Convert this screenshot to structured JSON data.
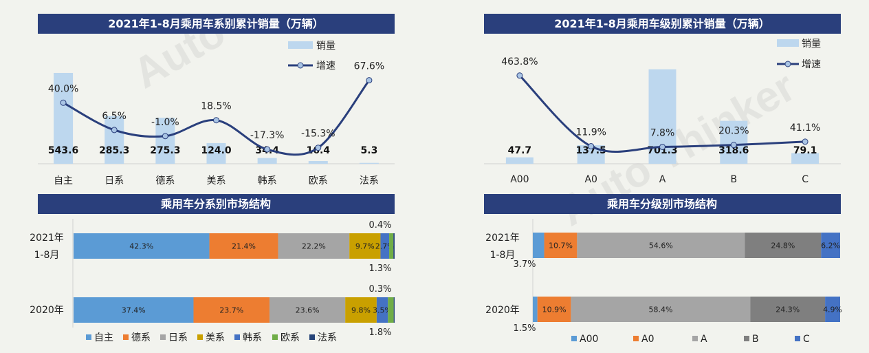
{
  "chart_data": [
    {
      "id": "chart1",
      "type": "bar+line",
      "title": "2021年1-8月乘用车系别累计销量（万辆）",
      "categories": [
        "自主",
        "日系",
        "德系",
        "美系",
        "韩系",
        "欧系",
        "法系"
      ],
      "series": [
        {
          "name": "销量",
          "type": "bar",
          "values": [
            543.6,
            285.3,
            275.3,
            124.0,
            34.4,
            16.4,
            5.3
          ],
          "labels": [
            "543.6",
            "285.3",
            "275.3",
            "124.0",
            "34.4",
            "16.4",
            "5.3"
          ]
        },
        {
          "name": "增速",
          "type": "line",
          "values": [
            40.0,
            6.5,
            -1.0,
            18.5,
            -17.3,
            -15.3,
            67.6
          ],
          "labels": [
            "40.0%",
            "6.5%",
            "-1.0%",
            "18.5%",
            "-17.3%",
            "-15.3%",
            "67.6%"
          ]
        }
      ],
      "legend": [
        "销量",
        "增速"
      ],
      "ylim_bar": [
        0,
        560
      ],
      "ylim_line": [
        -35,
        80
      ]
    },
    {
      "id": "chart2",
      "type": "bar+line",
      "title": "2021年1-8月乘用车级别累计销量（万辆）",
      "categories": [
        "A00",
        "A0",
        "A",
        "B",
        "C"
      ],
      "series": [
        {
          "name": "销量",
          "type": "bar",
          "values": [
            47.7,
            137.5,
            701.3,
            318.6,
            79.1
          ],
          "labels": [
            "47.7",
            "137.5",
            "701.3",
            "318.6",
            "79.1"
          ]
        },
        {
          "name": "增速",
          "type": "line",
          "values": [
            463.8,
            11.9,
            7.8,
            20.3,
            41.1
          ],
          "labels": [
            "463.8%",
            "11.9%",
            "7.8%",
            "20.3%",
            "41.1%"
          ]
        }
      ],
      "legend": [
        "销量",
        "增速"
      ],
      "ylim_bar": [
        0,
        720
      ],
      "ylim_line": [
        -100,
        520
      ]
    },
    {
      "id": "chart3",
      "type": "stacked-bar-100",
      "title": "乘用车分系别市场结构",
      "categories": [
        "2021年 1-8月",
        "2020年"
      ],
      "series_names": [
        "自主",
        "德系",
        "日系",
        "美系",
        "韩系",
        "欧系",
        "法系"
      ],
      "colors": [
        "#5b9bd5",
        "#ed7d31",
        "#a5a5a5",
        "#c9a000",
        "#4472c4",
        "#70ad47",
        "#264478"
      ],
      "rows": [
        {
          "label_line1": "2021年",
          "label_line2": "1-8月",
          "values": [
            42.3,
            21.4,
            22.2,
            9.7,
            2.7,
            1.3,
            0.4
          ],
          "seg_labels": [
            "42.3%",
            "21.4%",
            "22.2%",
            "9.7%",
            "2.7%"
          ],
          "above": "0.4%",
          "below": "1.3%"
        },
        {
          "label_line1": "2020年",
          "label_line2": "",
          "values": [
            37.4,
            23.7,
            23.6,
            9.8,
            3.5,
            1.8,
            0.3
          ],
          "seg_labels": [
            "37.4%",
            "23.7%",
            "23.6%",
            "9.8%",
            "3.5%"
          ],
          "above": "0.3%",
          "below": "1.8%"
        }
      ]
    },
    {
      "id": "chart4",
      "type": "stacked-bar-100",
      "title": "乘用车分级别市场结构",
      "categories": [
        "2021年 1-8月",
        "2020年"
      ],
      "series_names": [
        "A00",
        "A0",
        "A",
        "B",
        "C"
      ],
      "colors": [
        "#5b9bd5",
        "#ed7d31",
        "#a5a5a5",
        "#7f7f7f",
        "#4472c4"
      ],
      "rows": [
        {
          "label_line1": "2021年",
          "label_line2": "1-8月",
          "values": [
            3.7,
            10.7,
            54.6,
            24.8,
            6.2
          ],
          "seg_labels": [
            "",
            "10.7%",
            "54.6%",
            "24.8%",
            "6.2%"
          ],
          "below": "3.7%"
        },
        {
          "label_line1": "2020年",
          "label_line2": "",
          "values": [
            1.5,
            10.9,
            58.4,
            24.3,
            4.9
          ],
          "seg_labels": [
            "",
            "10.9%",
            "58.4%",
            "24.3%",
            "4.9%"
          ],
          "below": "1.5%"
        }
      ]
    }
  ],
  "colors": {
    "title_bg": "#2a3f7c",
    "bar": "#bdd7ee",
    "line": "#2a3f7c",
    "marker_fill": "#a9c4e4"
  }
}
